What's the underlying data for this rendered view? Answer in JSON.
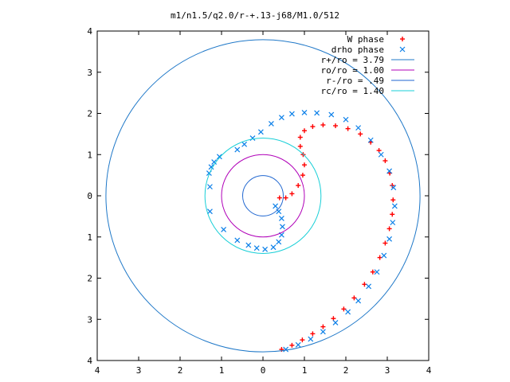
{
  "chart_data": {
    "type": "scatter",
    "title": "m1/n1.5/q2.0/r-+.13-j68/M1.0/512",
    "xlabel": "",
    "ylabel": "",
    "xlim": [
      -4,
      4
    ],
    "ylim": [
      -4,
      4
    ],
    "x_ticks": [
      -4,
      -3,
      -2,
      -1,
      0,
      1,
      2,
      3,
      4
    ],
    "y_ticks": [
      -4,
      -3,
      -2,
      -1,
      0,
      1,
      2,
      3,
      4
    ],
    "x_tick_labels": [
      "4",
      "3",
      "2",
      "1",
      "0",
      "1",
      "2",
      "3",
      "4"
    ],
    "y_tick_labels": [
      "4",
      "3",
      "2",
      "1",
      "0",
      "1",
      "2",
      "3",
      "4"
    ],
    "grid": false,
    "legend_position": "top-right",
    "series": [
      {
        "name": "W phase",
        "kind": "points",
        "marker": "+",
        "color": "#ff0000",
        "points": [
          [
            0.45,
            -3.73
          ],
          [
            0.7,
            -3.63
          ],
          [
            0.95,
            -3.5
          ],
          [
            1.2,
            -3.35
          ],
          [
            1.45,
            -3.18
          ],
          [
            1.7,
            -2.98
          ],
          [
            1.95,
            -2.75
          ],
          [
            2.2,
            -2.48
          ],
          [
            2.45,
            -2.15
          ],
          [
            2.65,
            -1.85
          ],
          [
            2.82,
            -1.5
          ],
          [
            2.95,
            -1.15
          ],
          [
            3.05,
            -0.8
          ],
          [
            3.12,
            -0.45
          ],
          [
            3.14,
            -0.1
          ],
          [
            3.12,
            0.25
          ],
          [
            3.06,
            0.55
          ],
          [
            2.95,
            0.85
          ],
          [
            2.8,
            1.1
          ],
          [
            2.6,
            1.3
          ],
          [
            2.35,
            1.5
          ],
          [
            2.05,
            1.63
          ],
          [
            1.75,
            1.7
          ],
          [
            1.45,
            1.72
          ],
          [
            1.2,
            1.68
          ],
          [
            1.0,
            1.58
          ],
          [
            0.9,
            1.42
          ],
          [
            0.9,
            1.2
          ],
          [
            0.97,
            1.0
          ],
          [
            1.0,
            0.75
          ],
          [
            0.96,
            0.5
          ],
          [
            0.85,
            0.25
          ],
          [
            0.7,
            0.05
          ],
          [
            0.55,
            -0.05
          ],
          [
            0.4,
            -0.05
          ]
        ]
      },
      {
        "name": "drho phase",
        "kind": "points",
        "marker": "x",
        "color": "#0a7fe8",
        "points": [
          [
            0.55,
            -3.73
          ],
          [
            0.85,
            -3.62
          ],
          [
            1.15,
            -3.48
          ],
          [
            1.45,
            -3.3
          ],
          [
            1.75,
            -3.08
          ],
          [
            2.05,
            -2.82
          ],
          [
            2.3,
            -2.55
          ],
          [
            2.55,
            -2.2
          ],
          [
            2.75,
            -1.85
          ],
          [
            2.92,
            -1.45
          ],
          [
            3.05,
            -1.05
          ],
          [
            3.13,
            -0.65
          ],
          [
            3.18,
            -0.25
          ],
          [
            3.15,
            0.2
          ],
          [
            3.05,
            0.6
          ],
          [
            2.85,
            1.0
          ],
          [
            2.6,
            1.35
          ],
          [
            2.3,
            1.65
          ],
          [
            2.0,
            1.85
          ],
          [
            1.65,
            1.97
          ],
          [
            1.3,
            2.01
          ],
          [
            1.0,
            2.02
          ],
          [
            0.7,
            1.99
          ],
          [
            0.45,
            1.9
          ],
          [
            0.2,
            1.75
          ],
          [
            -0.05,
            1.55
          ],
          [
            -0.25,
            1.4
          ],
          [
            -0.45,
            1.25
          ],
          [
            -0.62,
            1.12
          ],
          [
            -1.05,
            0.95
          ],
          [
            -1.18,
            0.82
          ],
          [
            -1.25,
            0.7
          ],
          [
            -1.3,
            0.55
          ],
          [
            -1.28,
            0.22
          ],
          [
            -1.28,
            -0.38
          ],
          [
            -0.95,
            -0.82
          ],
          [
            -0.62,
            -1.08
          ],
          [
            -0.35,
            -1.2
          ],
          [
            -0.15,
            -1.27
          ],
          [
            0.05,
            -1.3
          ],
          [
            0.25,
            -1.25
          ],
          [
            0.38,
            -1.12
          ],
          [
            0.45,
            -0.95
          ],
          [
            0.47,
            -0.75
          ],
          [
            0.45,
            -0.55
          ],
          [
            0.38,
            -0.38
          ],
          [
            0.3,
            -0.25
          ]
        ]
      },
      {
        "name": "r+/ro = 3.79",
        "kind": "circle",
        "radius": 3.79,
        "color": "#1f78c8"
      },
      {
        "name": "ro/ro = 1.00",
        "kind": "circle",
        "radius": 1.0,
        "color": "#b000b8"
      },
      {
        "name": "r-/ro = .49",
        "kind": "circle",
        "radius": 0.49,
        "color": "#1f66d0"
      },
      {
        "name": "rc/ro = 1.40",
        "kind": "circle",
        "radius": 1.4,
        "color": "#19cfd7"
      }
    ]
  }
}
